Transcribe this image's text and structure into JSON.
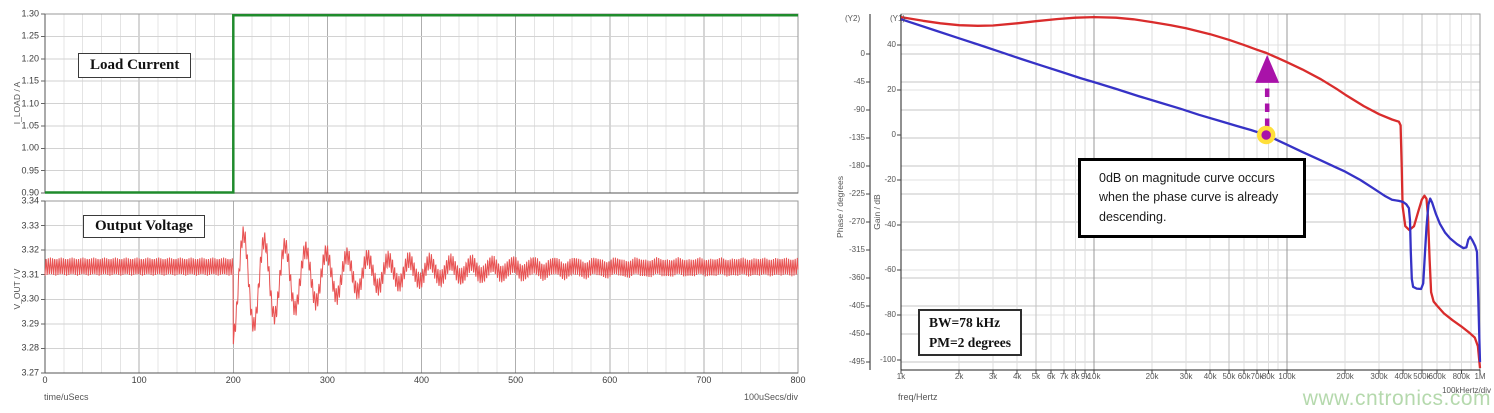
{
  "watermark": "www.cntronics.com",
  "colors": {
    "load_current": "#1f8b2c",
    "output_voltage": "#e85353",
    "phase_curve": "#d92c2c",
    "gain_curve": "#3632c6",
    "marker": "#a912a9",
    "marker_halo": "#ffdf3a",
    "watermark": "#b5d9ad"
  },
  "chart_data": [
    {
      "id": "transient",
      "type": "line",
      "xlabel": "time/uSecs",
      "x_div_label": "100uSecs/div",
      "xlim": [
        0,
        800
      ],
      "x_ticks": [
        0,
        100,
        200,
        300,
        400,
        500,
        600,
        700,
        800
      ],
      "x_minor_step_us": 20,
      "panels": [
        {
          "title": "Load Current",
          "ylabel": "I_LOAD / A",
          "ylim": [
            0.9,
            1.3
          ],
          "y_ticks": [
            "1.30",
            "1.25",
            "1.20",
            "1.15",
            "1.10",
            "1.05",
            "1.00",
            "0.95",
            "0.90"
          ],
          "series": [
            {
              "name": "load-current-step",
              "color_key": "load_current",
              "points": [
                [
                  0,
                  0.9
                ],
                [
                  200,
                  0.9
                ],
                [
                  200,
                  1.3
                ],
                [
                  800,
                  1.3
                ]
              ]
            }
          ]
        },
        {
          "title": "Output Voltage",
          "ylabel": "V_OUT / V",
          "ylim": [
            3.27,
            3.34
          ],
          "y_ticks": [
            "3.34",
            "3.33",
            "3.32",
            "3.31",
            "3.30",
            "3.29",
            "3.28",
            "3.27"
          ],
          "series": [
            {
              "name": "output-voltage-waveform",
              "color_key": "output_voltage",
              "waveform": {
                "base_v": 3.3133,
                "ripple_pp_v": 0.0074,
                "ripple_period_us": 2.3,
                "step_time_us": 200,
                "undershoot_v": 3.283,
                "overshoot_v": 3.326,
                "ring_amp_v": 0.0215,
                "ring_period_us": 22,
                "ring_decay_us": 120,
                "sag_v": -0.007,
                "sag_decay_us": 150,
                "settles_by_us": 450
              }
            }
          ]
        }
      ]
    },
    {
      "id": "bode",
      "type": "line",
      "xscale": "log",
      "xlabel": "freq/Hertz",
      "x_div_label": "100kHertz/div",
      "xlim": [
        1000,
        1000000
      ],
      "x_tick_labels": [
        "1k",
        "2k",
        "3k",
        "4k",
        "5k",
        "6k",
        "7k",
        "8k",
        "9k",
        "10k",
        "20k",
        "30k",
        "40k",
        "50k",
        "60k",
        "70k",
        "80k",
        "100k",
        "200k",
        "300k",
        "400k",
        "500k",
        "600k",
        "800k",
        "1M"
      ],
      "x_tick_values": [
        1000,
        2000,
        3000,
        4000,
        5000,
        6000,
        7000,
        8000,
        9000,
        10000,
        20000,
        30000,
        40000,
        50000,
        60000,
        70000,
        80000,
        100000,
        200000,
        300000,
        400000,
        500000,
        600000,
        800000,
        1000000
      ],
      "axes": {
        "y2": {
          "corner_label": "(Y2)",
          "label": "Phase / degrees",
          "ticks": [
            0,
            -45,
            -90,
            -135,
            -180,
            -225,
            -270,
            -315,
            -360,
            -405,
            -450,
            -495
          ],
          "top_value": 64,
          "bottom_value": -508
        },
        "y1": {
          "corner_label": "(Y1)",
          "label": "Gain / dB",
          "ticks": [
            40,
            20,
            0,
            -20,
            -40,
            -60,
            -80,
            -100
          ],
          "top_value": 53.8,
          "bottom_value": -104.5
        }
      },
      "series": [
        {
          "name": "phase",
          "axis": "y2",
          "color_key": "phase_curve",
          "points": [
            [
              1000,
              59
            ],
            [
              1300,
              53
            ],
            [
              1600,
              49
            ],
            [
              2000,
              46
            ],
            [
              2500,
              45
            ],
            [
              3000,
              45.5
            ],
            [
              4000,
              49
            ],
            [
              5000,
              52.5
            ],
            [
              6500,
              56
            ],
            [
              8000,
              58
            ],
            [
              10000,
              59
            ],
            [
              13000,
              58
            ],
            [
              16000,
              55.5
            ],
            [
              20000,
              51
            ],
            [
              25000,
              46
            ],
            [
              30000,
              41
            ],
            [
              40000,
              31.5
            ],
            [
              50000,
              22.5
            ],
            [
              60000,
              14
            ],
            [
              70000,
              6.5
            ],
            [
              78000,
              1.5
            ],
            [
              90000,
              -7
            ],
            [
              100000,
              -13.5
            ],
            [
              120000,
              -25
            ],
            [
              150000,
              -41
            ],
            [
              180000,
              -56
            ],
            [
              200000,
              -65.5
            ],
            [
              250000,
              -84
            ],
            [
              300000,
              -97
            ],
            [
              350000,
              -105.5
            ],
            [
              380000,
              -109
            ],
            [
              388000,
              -115
            ],
            [
              393000,
              -180
            ],
            [
              397000,
              -245
            ],
            [
              410000,
              -277
            ],
            [
              430000,
              -283
            ],
            [
              455000,
              -277
            ],
            [
              480000,
              -252
            ],
            [
              500000,
              -234
            ],
            [
              515000,
              -228
            ],
            [
              528000,
              -233
            ],
            [
              538000,
              -262
            ],
            [
              548000,
              -330
            ],
            [
              558000,
              -383
            ],
            [
              575000,
              -398
            ],
            [
              600000,
              -405
            ],
            [
              650000,
              -417
            ],
            [
              720000,
              -428
            ],
            [
              800000,
              -438
            ],
            [
              880000,
              -448
            ],
            [
              940000,
              -456
            ],
            [
              975000,
              -470
            ],
            [
              1000000,
              -505
            ]
          ]
        },
        {
          "name": "gain",
          "axis": "y1",
          "color_key": "gain_curve",
          "points": [
            [
              1000,
              51.5
            ],
            [
              1500,
              46.5
            ],
            [
              2000,
              43
            ],
            [
              2600,
              39.8
            ],
            [
              3300,
              36.8
            ],
            [
              4200,
              33.8
            ],
            [
              5300,
              31
            ],
            [
              6800,
              28
            ],
            [
              8500,
              25.3
            ],
            [
              10000,
              23.5
            ],
            [
              13000,
              20.5
            ],
            [
              17000,
              17.3
            ],
            [
              22000,
              14.4
            ],
            [
              28000,
              11.7
            ],
            [
              35000,
              9
            ],
            [
              45000,
              6.2
            ],
            [
              55000,
              4
            ],
            [
              65000,
              2.2
            ],
            [
              78000,
              0
            ],
            [
              90000,
              -2.5
            ],
            [
              100000,
              -4.3
            ],
            [
              120000,
              -7.5
            ],
            [
              150000,
              -11.3
            ],
            [
              180000,
              -14.5
            ],
            [
              200000,
              -16.3
            ],
            [
              240000,
              -20
            ],
            [
              280000,
              -23.7
            ],
            [
              320000,
              -27
            ],
            [
              350000,
              -28.8
            ],
            [
              380000,
              -29.3
            ],
            [
              400000,
              -29.8
            ],
            [
              415000,
              -30.8
            ],
            [
              428000,
              -32.5
            ],
            [
              434000,
              -38
            ],
            [
              438000,
              -52
            ],
            [
              443000,
              -64
            ],
            [
              450000,
              -67.5
            ],
            [
              470000,
              -68.3
            ],
            [
              495000,
              -68.5
            ],
            [
              508000,
              -66
            ],
            [
              518000,
              -53
            ],
            [
              528000,
              -41
            ],
            [
              540000,
              -31
            ],
            [
              552000,
              -28.3
            ],
            [
              565000,
              -30
            ],
            [
              590000,
              -35
            ],
            [
              620000,
              -39.5
            ],
            [
              660000,
              -43.5
            ],
            [
              700000,
              -46
            ],
            [
              760000,
              -48.5
            ],
            [
              820000,
              -50.3
            ],
            [
              850000,
              -50
            ],
            [
              870000,
              -46.5
            ],
            [
              890000,
              -45.3
            ],
            [
              915000,
              -47
            ],
            [
              945000,
              -49.5
            ],
            [
              965000,
              -52
            ],
            [
              1000000,
              -101
            ]
          ]
        }
      ],
      "marker": {
        "freq_hz": 78000,
        "gain_db": 0
      },
      "arrow": {
        "freq_hz": 78000,
        "from_gain_db": 0
      },
      "annotation_box": "0dB on magnitude curve occurs when the phase curve is already descending.",
      "info_box": [
        "BW=78 kHz",
        "PM=2 degrees"
      ]
    }
  ]
}
